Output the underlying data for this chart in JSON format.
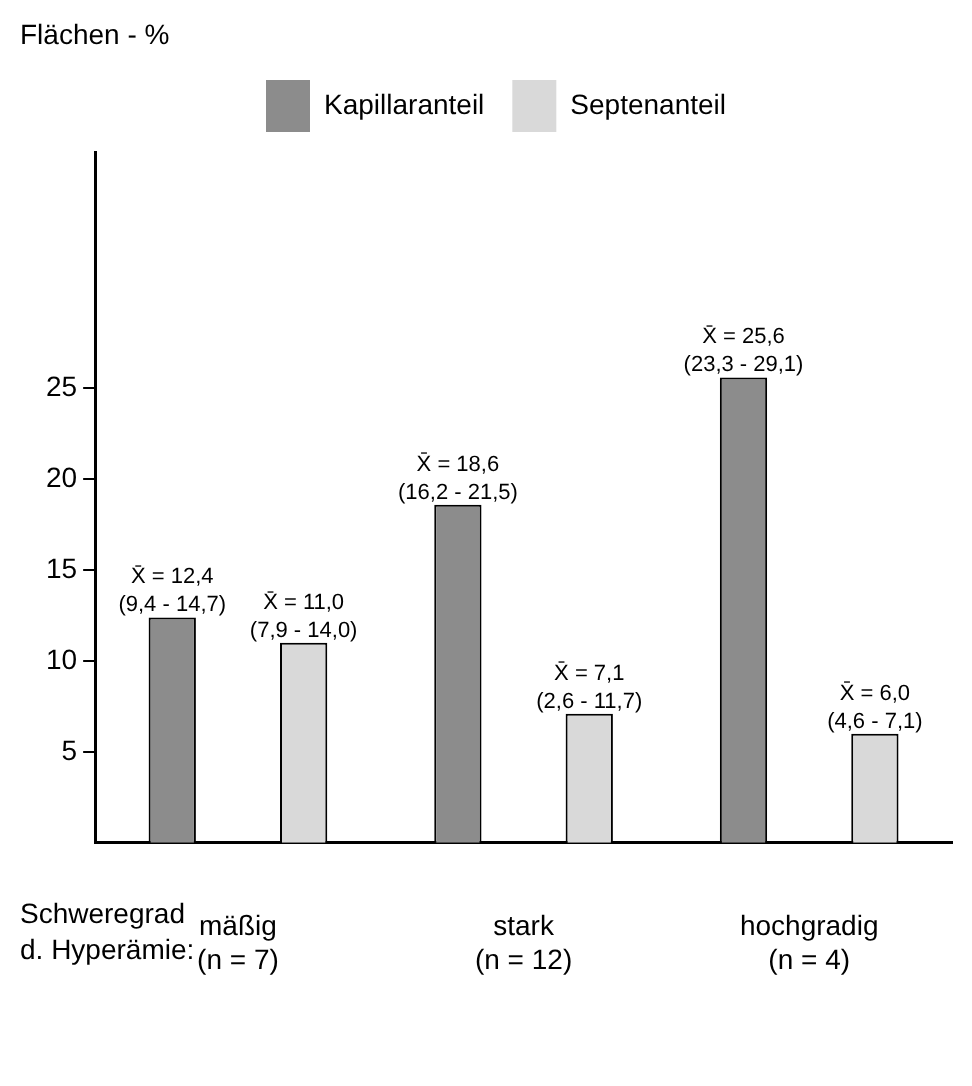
{
  "chart_data": {
    "type": "bar",
    "ylabel": "Flächen - %",
    "xlabel": "Schweregrad\nd. Hyperämie:",
    "categories": [
      "mäßig\n(n = 7)",
      "stark\n(n = 12)",
      "hochgradig\n(n = 4)"
    ],
    "series": [
      {
        "name": "Kapillaranteil",
        "color": "#8c8c8c",
        "values": [
          12.4,
          18.6,
          25.6
        ],
        "value_labels": [
          "X̄ = 12,4\n(9,4 - 14,7)",
          "X̄ = 18,6\n(16,2 - 21,5)",
          "X̄ = 25,6\n(23,3 - 29,1)"
        ]
      },
      {
        "name": "Septenanteil",
        "color": "#d9d9d9",
        "values": [
          11.0,
          7.1,
          6.0
        ],
        "value_labels": [
          "X̄ = 11,0\n(7,9 - 14,0)",
          "X̄ = 7,1\n(2,6 - 11,7)",
          "X̄ = 6,0\n(4,6 - 7,1)"
        ]
      }
    ],
    "ylim": [
      0,
      38
    ],
    "yticks": [
      5,
      10,
      15,
      20,
      25
    ],
    "grid": false,
    "legend": "top"
  }
}
